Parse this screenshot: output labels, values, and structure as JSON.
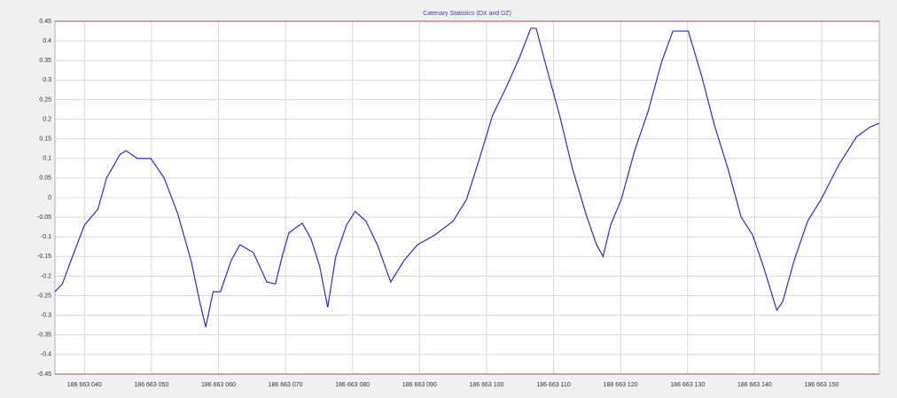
{
  "chart_data": {
    "type": "line",
    "title": "Catenary Statistics (DX and DZ)",
    "color": "#2a2ae0",
    "grid": true,
    "x": [
      186663035.6,
      186663036.7,
      186663038.0,
      186663040.0,
      186663042.0,
      186663043.3,
      186663045.3,
      186663046.2,
      186663047.9,
      186663049.9,
      186663051.9,
      186663053.9,
      186663055.9,
      186663057.2,
      186663058.1,
      186663059.2,
      186663060.3,
      186663061.9,
      186663063.2,
      186663065.2,
      186663067.2,
      186663068.5,
      186663069.5,
      186663070.5,
      186663072.5,
      186663073.8,
      186663075.1,
      186663076.3,
      186663077.5,
      186663079.1,
      186663080.4,
      186663082.0,
      186663083.7,
      186663085.7,
      186663087.7,
      186663089.7,
      186663092.3,
      186663095.0,
      186663097.0,
      186663098.9,
      186663100.9,
      186663102.9,
      186663104.9,
      186663106.6,
      186663107.4,
      186663108.9,
      186663110.9,
      186663112.8,
      186663114.8,
      186663116.4,
      186663117.4,
      186663118.5,
      186663120.1,
      186663122.1,
      186663124.1,
      186663126.1,
      186663127.8,
      186663130.1,
      186663132.1,
      186663134.0,
      186663136.0,
      186663138.0,
      186663139.7,
      186663141.3,
      186663143.3,
      186663144.2,
      186663145.9,
      186663147.9,
      186663149.9,
      186663152.6,
      186663155.2,
      186663157.2,
      186663158.6
    ],
    "values": [
      -0.24,
      -0.22,
      -0.16,
      -0.07,
      -0.03,
      0.05,
      0.11,
      0.12,
      0.1,
      0.1,
      0.05,
      -0.04,
      -0.16,
      -0.265,
      -0.33,
      -0.24,
      -0.24,
      -0.16,
      -0.12,
      -0.14,
      -0.215,
      -0.22,
      -0.15,
      -0.09,
      -0.065,
      -0.105,
      -0.175,
      -0.28,
      -0.15,
      -0.07,
      -0.035,
      -0.06,
      -0.12,
      -0.215,
      -0.16,
      -0.12,
      -0.095,
      -0.06,
      -0.005,
      0.097,
      0.21,
      0.28,
      0.357,
      0.432,
      0.432,
      0.335,
      0.21,
      0.075,
      -0.04,
      -0.12,
      -0.15,
      -0.07,
      -0.005,
      0.12,
      0.22,
      0.345,
      0.425,
      0.425,
      0.31,
      0.185,
      0.075,
      -0.05,
      -0.095,
      -0.175,
      -0.287,
      -0.265,
      -0.16,
      -0.06,
      -0.005,
      0.085,
      0.155,
      0.18,
      0.19
    ],
    "xlim": [
      186663035.6,
      186663158.6
    ],
    "ylim": [
      -0.45,
      0.45
    ],
    "xticks": [
      {
        "value": 186663040,
        "label": "186 663 040"
      },
      {
        "value": 186663050,
        "label": "186 663 050"
      },
      {
        "value": 186663060,
        "label": "186 663 060"
      },
      {
        "value": 186663070,
        "label": "186 663 070"
      },
      {
        "value": 186663080,
        "label": "186 663 080"
      },
      {
        "value": 186663090,
        "label": "186 663 090"
      },
      {
        "value": 186663100,
        "label": "186 663 100"
      },
      {
        "value": 186663110,
        "label": "186 663 110"
      },
      {
        "value": 186663120,
        "label": "186 663 120"
      },
      {
        "value": 186663130,
        "label": "186 663 130"
      },
      {
        "value": 186663140,
        "label": "186 663 140"
      },
      {
        "value": 186663150,
        "label": "186 663 150"
      }
    ],
    "yticks": [
      0.45,
      0.4,
      0.35,
      0.3,
      0.25,
      0.2,
      0.15,
      0.1,
      0.05,
      0,
      -0.05,
      -0.1,
      -0.15,
      -0.2,
      -0.25,
      -0.3,
      -0.35,
      -0.4,
      -0.45
    ]
  }
}
